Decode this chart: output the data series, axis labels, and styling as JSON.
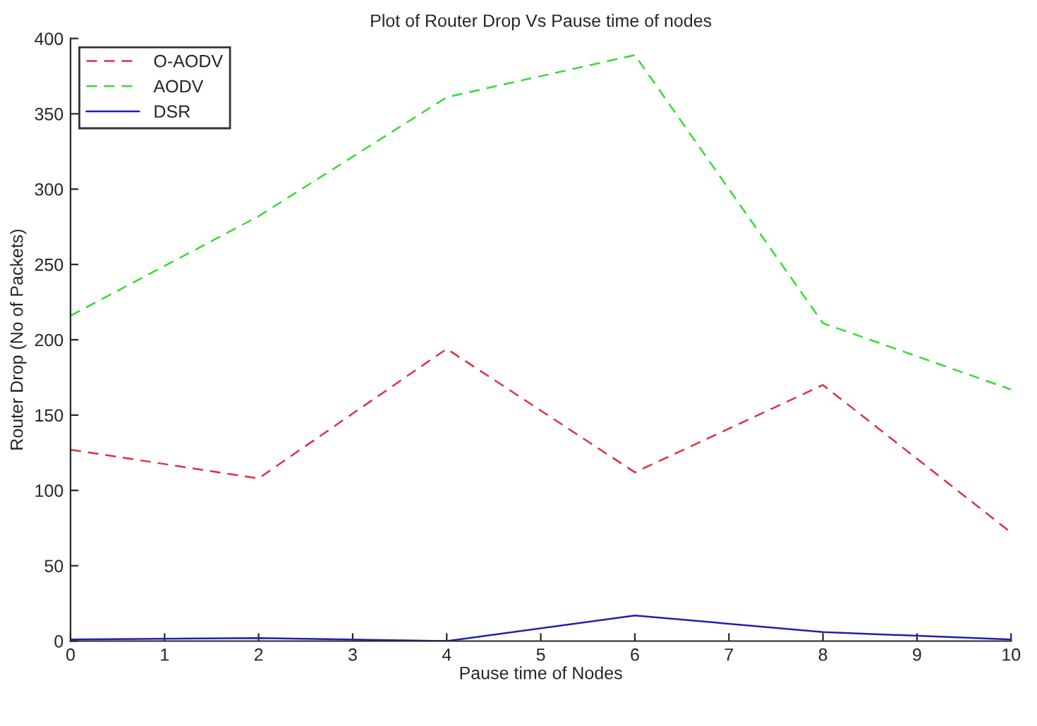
{
  "chart_data": {
    "type": "line",
    "title": "Plot of Router Drop Vs Pause time of nodes",
    "xlabel": "Pause time of Nodes",
    "ylabel": "Router Drop (No of Packets)",
    "x": [
      0,
      2,
      4,
      6,
      8,
      10
    ],
    "series": [
      {
        "name": "O-AODV",
        "color": "#e0303c",
        "line_style": "dashed",
        "values": [
          127,
          108,
          194,
          112,
          170,
          72
        ]
      },
      {
        "name": "AODV",
        "color": "#33dd33",
        "line_style": "dashed",
        "values": [
          216,
          282,
          361,
          389,
          211,
          167
        ]
      },
      {
        "name": "DSR",
        "color": "#2020b0",
        "line_style": "solid",
        "values": [
          1,
          2,
          0,
          17,
          6,
          1
        ]
      }
    ],
    "xlim": [
      0,
      10
    ],
    "xticks": [
      0,
      1,
      2,
      3,
      4,
      5,
      6,
      7,
      8,
      9,
      10
    ],
    "ylim": [
      0,
      400
    ],
    "yticks": [
      0,
      50,
      100,
      150,
      200,
      250,
      300,
      350,
      400
    ],
    "grid": false,
    "legend": "top left"
  }
}
